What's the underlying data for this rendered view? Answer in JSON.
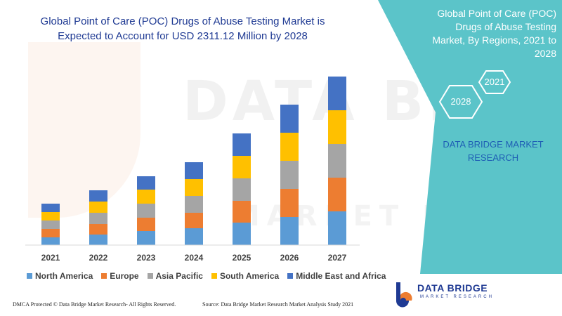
{
  "title": "Global Point of Care (POC) Drugs of Abuse Testing Market is Expected to Account for USD 2311.12 Million by 2028",
  "panel": {
    "title": "Global Point of Care (POC) Drugs of Abuse Testing Market, By Regions, 2021 to 2028",
    "hex_year_1": "2021",
    "hex_year_2": "2028",
    "company": "DATA BRIDGE MARKET RESEARCH",
    "accent": "#5bc4c9"
  },
  "watermark": {
    "text": "DATA BRIDGE",
    "sub": "MARKET RESEARCH"
  },
  "footer": {
    "left": "DMCA Protected © Data Bridge Market Research- All Rights Reserved.",
    "right": "Source: Data Bridge Market Research Market Analysis Study 2021"
  },
  "logo": {
    "name": "DATA BRIDGE",
    "sub": "MARKET RESEARCH"
  },
  "chart_data": {
    "type": "bar",
    "stacked": true,
    "categories": [
      "2021",
      "2022",
      "2023",
      "2024",
      "2025",
      "2026",
      "2027"
    ],
    "series": [
      {
        "name": "North America",
        "color": "#5b9bd5",
        "values": [
          11,
          15,
          20,
          24,
          32,
          40,
          48
        ]
      },
      {
        "name": "Europe",
        "color": "#ed7d31",
        "values": [
          12,
          15,
          19,
          22,
          31,
          40,
          48
        ]
      },
      {
        "name": "Asia Pacific",
        "color": "#a5a5a5",
        "values": [
          12,
          16,
          20,
          24,
          32,
          40,
          48
        ]
      },
      {
        "name": "South America",
        "color": "#ffc000",
        "values": [
          12,
          16,
          20,
          24,
          32,
          40,
          48
        ]
      },
      {
        "name": "Middle East and Africa",
        "color": "#4472c4",
        "values": [
          12,
          16,
          19,
          24,
          32,
          40,
          48
        ]
      }
    ],
    "ylim": [
      0,
      240
    ],
    "grid": false,
    "legend_position": "bottom"
  }
}
